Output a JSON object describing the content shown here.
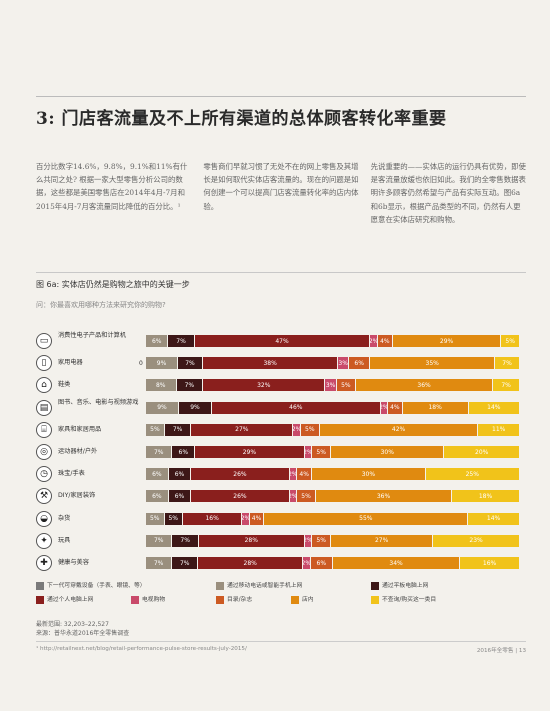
{
  "section": {
    "title": "3: 门店客流量及不上所有渠道的总体顾客转化率重要"
  },
  "body_cols": [
    "百分比数字14.6%，9.8%，9.1%和11%有什么共同之处? 根据一家大型零售分析公司的数据，这些都是美国零售店在2014年4月-7月和2015年4月-7月客流量同比降低的百分比。¹",
    "零售商们早就习惯了无处不在的网上零售及其增长是如何取代实体店客流量的。现在的问题是如何创建一个可以提高门店客流量转化率的店内体验。",
    "先说重要的——实体店的运行仍具有优势，即使是客流量放缓也依旧如此。我们的全零售数据表明许多顾客仍然希望与产品有实际互动。图6a和6b显示，根据产品类型的不同，仍然有人更愿意在实体店研究和购物。"
  ],
  "figure": {
    "title": "图 6a: 实体店仍然是购物之旅中的关键一步",
    "question": "问：你最喜欢用哪种方法来研究你的购物?"
  },
  "sources": {
    "sample": "最新范围: 32,203–22,527",
    "source": "来源：普华永道2016年全零售调查"
  },
  "footnote": "¹ http://retailnext.net/blog/retail-performance-pulse-store-results-july-2015/",
  "page_number": "2016年全零售  |  13",
  "colors": {
    "next_gen": "#7a7a7a",
    "mobile": "#9a8f7e",
    "tablet": "#3d1717",
    "pc": "#8a1f1d",
    "tv": "#c94a6a",
    "catalog": "#cc5a22",
    "store": "#e08a10",
    "none": "#f1c31a"
  },
  "chart_data": {
    "type": "bar",
    "orientation": "horizontal",
    "stacked": true,
    "title": "图 6a: 实体店仍然是购物之旅中的关键一步",
    "xlim": [
      0,
      100
    ],
    "categories": [
      "消费性电子产品和计算机",
      "家用电器",
      "鞋类",
      "图书、音乐、电影与视频游戏",
      "家具和家居用品",
      "运动器材/户外",
      "珠宝/手表",
      "DIY/家居装饰",
      "杂货",
      "玩具",
      "健康与美容"
    ],
    "category_icons": [
      "laptop-icon",
      "fridge-icon",
      "shoe-icon",
      "book-icon",
      "sofa-icon",
      "bike-icon",
      "watch-icon",
      "tools-icon",
      "grocery-icon",
      "toy-icon",
      "health-icon"
    ],
    "series": [
      {
        "name": "下一代可穿戴设备（手表、眼镜、等）",
        "key": "next_gen",
        "values": [
          0,
          0,
          0,
          0,
          0,
          0,
          0,
          0,
          0,
          0,
          0
        ]
      },
      {
        "name": "通过移动电话或智能手机上网",
        "key": "mobile",
        "values": [
          6,
          9,
          8,
          9,
          5,
          7,
          6,
          6,
          5,
          7,
          7
        ]
      },
      {
        "name": "通过平板电脑上网",
        "key": "tablet",
        "values": [
          7,
          7,
          7,
          9,
          7,
          6,
          6,
          6,
          5,
          7,
          7
        ]
      },
      {
        "name": "通过个人电脑上网",
        "key": "pc",
        "values": [
          47,
          38,
          32,
          46,
          27,
          29,
          26,
          26,
          16,
          28,
          28
        ]
      },
      {
        "name": "电视购物",
        "key": "tv",
        "values": [
          2,
          3,
          3,
          2,
          2,
          2,
          2,
          2,
          2,
          2,
          2
        ]
      },
      {
        "name": "目录/杂志",
        "key": "catalog",
        "values": [
          4,
          6,
          5,
          4,
          5,
          5,
          4,
          5,
          4,
          5,
          6
        ]
      },
      {
        "name": "店内",
        "key": "store",
        "values": [
          29,
          35,
          36,
          18,
          42,
          30,
          30,
          36,
          55,
          27,
          34
        ]
      },
      {
        "name": "不查询/购买这一类目",
        "key": "none",
        "values": [
          5,
          7,
          7,
          14,
          11,
          20,
          25,
          18,
          14,
          23,
          16
        ]
      }
    ],
    "zero_markers": [
      false,
      true,
      false,
      false,
      false,
      false,
      false,
      false,
      false,
      false,
      false
    ],
    "legend_position": "bottom",
    "grid": false
  }
}
